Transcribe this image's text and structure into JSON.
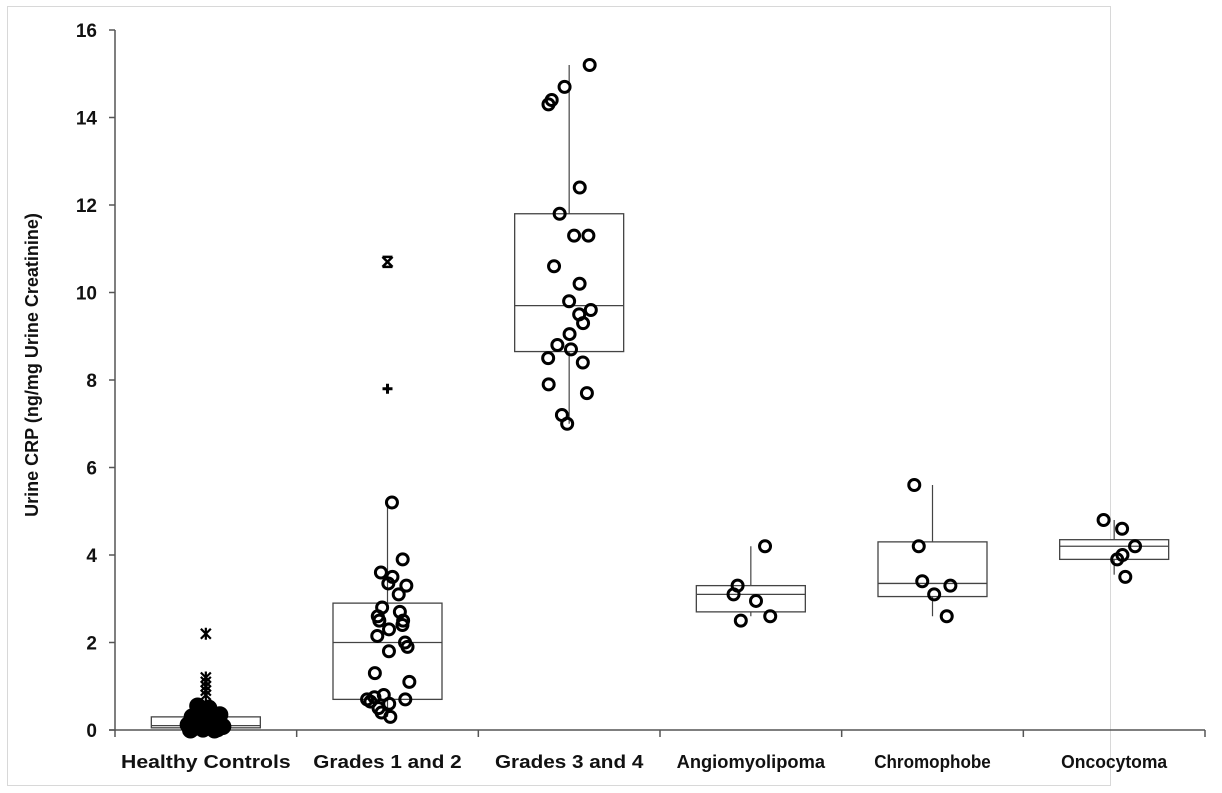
{
  "chart_data": {
    "type": "box",
    "title": "",
    "xlabel": "",
    "ylabel": "Urine CRP (ng/mg Urine Creatinine)",
    "ylim": [
      0,
      16
    ],
    "yticks": [
      0,
      2,
      4,
      6,
      8,
      10,
      12,
      14,
      16
    ],
    "grid": false,
    "legend": null,
    "categories": [
      "Healthy Controls",
      "Grades 1 and 2",
      "Grades 3 and 4",
      "Angiomyolipoma",
      "Chromophobe",
      "Oncocytoma"
    ],
    "series": [
      {
        "name": "Healthy Controls",
        "box": {
          "q1": 0.05,
          "median": 0.1,
          "q3": 0.3,
          "whisker_low": 0.0,
          "whisker_high": 0.6
        },
        "points": [
          0.0,
          0.0,
          0.02,
          0.03,
          0.05,
          0.05,
          0.07,
          0.08,
          0.1,
          0.1,
          0.12,
          0.15,
          0.15,
          0.18,
          0.2,
          0.2,
          0.22,
          0.25,
          0.28,
          0.3,
          0.3,
          0.35,
          0.4,
          0.45,
          0.5,
          0.55
        ],
        "outliers": [
          {
            "value": 0.8,
            "marker": "asterisk"
          },
          {
            "value": 0.9,
            "marker": "asterisk"
          },
          {
            "value": 1.0,
            "marker": "asterisk"
          },
          {
            "value": 1.1,
            "marker": "asterisk"
          },
          {
            "value": 1.2,
            "marker": "asterisk"
          },
          {
            "value": 2.2,
            "marker": "asterisk"
          }
        ]
      },
      {
        "name": "Grades 1 and 2",
        "box": {
          "q1": 0.7,
          "median": 2.0,
          "q3": 2.9,
          "whisker_low": 0.3,
          "whisker_high": 5.2
        },
        "points": [
          0.3,
          0.4,
          0.5,
          0.6,
          0.65,
          0.7,
          0.7,
          0.75,
          0.8,
          1.1,
          1.3,
          1.8,
          1.9,
          2.0,
          2.15,
          2.3,
          2.4,
          2.5,
          2.5,
          2.6,
          2.7,
          2.8,
          3.1,
          3.3,
          3.35,
          3.5,
          3.6,
          3.9,
          5.2
        ],
        "outliers": [
          {
            "value": 7.8,
            "marker": "plus"
          },
          {
            "value": 10.7,
            "marker": "x"
          }
        ]
      },
      {
        "name": "Grades 3 and 4",
        "box": {
          "q1": 8.65,
          "median": 9.7,
          "q3": 11.8,
          "whisker_low": 7.0,
          "whisker_high": 15.2
        },
        "points": [
          7.0,
          7.2,
          7.7,
          7.9,
          8.4,
          8.5,
          8.7,
          8.8,
          9.05,
          9.3,
          9.5,
          9.6,
          9.8,
          10.2,
          10.6,
          11.3,
          11.3,
          11.8,
          12.4,
          14.3,
          14.4,
          14.7,
          15.2
        ]
      },
      {
        "name": "Angiomyolipoma",
        "box": {
          "q1": 2.7,
          "median": 3.1,
          "q3": 3.3,
          "whisker_low": 2.6,
          "whisker_high": 4.2
        },
        "points": [
          2.5,
          2.6,
          2.95,
          3.1,
          3.3,
          4.2
        ]
      },
      {
        "name": "Chromophobe",
        "box": {
          "q1": 3.05,
          "median": 3.35,
          "q3": 4.3,
          "whisker_low": 2.6,
          "whisker_high": 5.6
        },
        "points": [
          2.6,
          3.1,
          3.3,
          3.4,
          4.2,
          5.6
        ]
      },
      {
        "name": "Oncocytoma",
        "box": {
          "q1": 3.9,
          "median": 4.2,
          "q3": 4.35,
          "whisker_low": 3.55,
          "whisker_high": 4.8
        },
        "points": [
          3.5,
          3.9,
          4.0,
          4.2,
          4.6,
          4.8
        ]
      }
    ]
  },
  "axis": {
    "y_label": "Urine CRP (ng/mg Urine Creatinine)",
    "y_tick_labels": [
      "0",
      "2",
      "4",
      "6",
      "8",
      "10",
      "12",
      "14",
      "16"
    ],
    "x_tick_labels": [
      "Healthy Controls",
      "Grades 1 and 2",
      "Grades 3 and 4",
      "Angiomyolipoma",
      "Chromophobe",
      "Oncocytoma"
    ]
  },
  "colors": {
    "axis": "#555555",
    "box_stroke": "#444444",
    "marker": "#000000",
    "background": "#ffffff"
  }
}
